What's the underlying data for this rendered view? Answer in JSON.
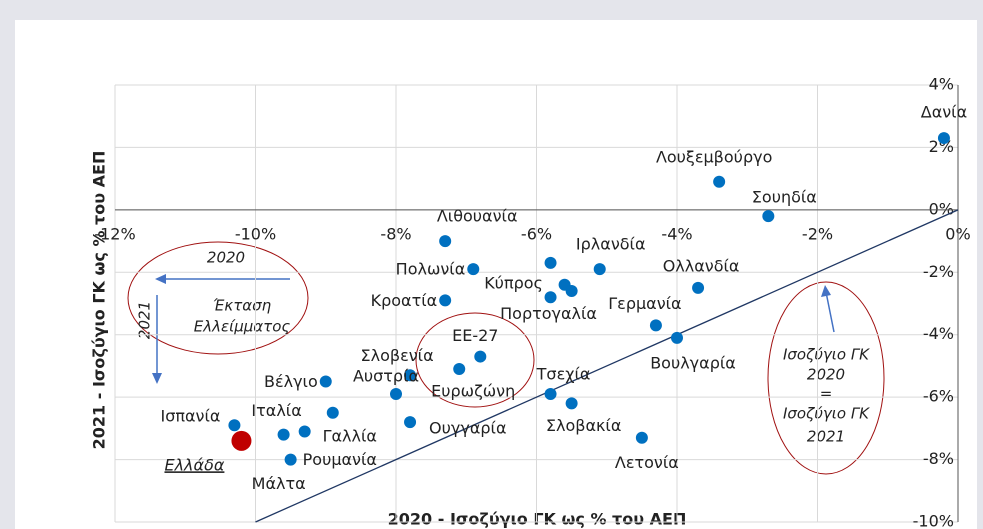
{
  "chart_data": {
    "type": "scatter",
    "xlabel": "2020 - Ισοζύγιο ΓΚ ως % του ΑΕΠ",
    "ylabel": "2021 - Ισοζύγιο ΓΚ ως % του ΑΕΠ",
    "labels": [
      "Δανία",
      "Λουξεμβούργο",
      "Σουηδία",
      "Λιθουανία",
      "Πολωνία",
      "Κύπρος",
      "Ιρλανδία",
      "Ολλανδία",
      null,
      null,
      "Πορτογαλία",
      "Κροατία",
      "Γερμανία",
      "Βουλγαρία",
      "ΕΕ-27",
      "Ευρωζώνη",
      "Σλοβενία",
      "Αυστρία",
      "Βέλγιο",
      "Τσεχία",
      "Σλοβακία",
      "Ιταλία",
      "Μάλτα",
      "Γαλλία",
      "Ρουμανία",
      "Ουγγαρία",
      "Ισπανία",
      "Λετονία",
      "Ελλάδα"
    ],
    "x": [
      -0.2,
      -3.4,
      -2.7,
      -7.3,
      -6.9,
      -5.8,
      -5.1,
      -3.7,
      -5.6,
      -5.5,
      -5.8,
      -7.3,
      -4.3,
      -4.0,
      -6.8,
      -7.1,
      -7.8,
      -8.0,
      -9.0,
      -5.8,
      -5.5,
      -9.6,
      -9.3,
      -8.9,
      -9.5,
      -7.8,
      -10.3,
      -4.5,
      -10.2
    ],
    "values": [
      2.3,
      0.9,
      -0.2,
      -1.0,
      -1.9,
      -1.7,
      -1.9,
      -2.5,
      -2.4,
      -2.6,
      -2.8,
      -2.9,
      -3.7,
      -4.1,
      -4.7,
      -5.1,
      -5.3,
      -5.9,
      -5.5,
      -5.9,
      -6.2,
      -7.2,
      -7.1,
      -6.5,
      -8.0,
      -6.8,
      -6.9,
      -7.3,
      -7.4
    ],
    "color": "#0070c0",
    "highlight_index": 28,
    "highlight_color": "#c00000",
    "xlim": [
      -12,
      0
    ],
    "ylim": [
      -10,
      4
    ],
    "xticks": [
      {
        "value": -12,
        "label": "-12%"
      },
      {
        "value": -10,
        "label": "-10%"
      },
      {
        "value": -8,
        "label": "-8%"
      },
      {
        "value": -6,
        "label": "-6%"
      },
      {
        "value": -4,
        "label": "-4%"
      },
      {
        "value": -2,
        "label": "-2%"
      },
      {
        "value": 0,
        "label": "0%"
      }
    ],
    "yticks": [
      {
        "value": 4,
        "label": "4%"
      },
      {
        "value": 2,
        "label": "2%"
      },
      {
        "value": 0,
        "label": "0%"
      },
      {
        "value": -2,
        "label": "-2%"
      },
      {
        "value": -4,
        "label": "-4%"
      },
      {
        "value": -6,
        "label": "-6%"
      },
      {
        "value": -8,
        "label": "-8%"
      },
      {
        "value": -10,
        "label": "-10%"
      }
    ],
    "grid": true,
    "annotations": [
      "2020",
      "2021",
      "Έκταση",
      "Ελλείμματος",
      "Ισοζύγιο ΓΚ",
      "2020",
      "=",
      "Ισοζύγιο ΓΚ",
      "2021"
    ]
  }
}
